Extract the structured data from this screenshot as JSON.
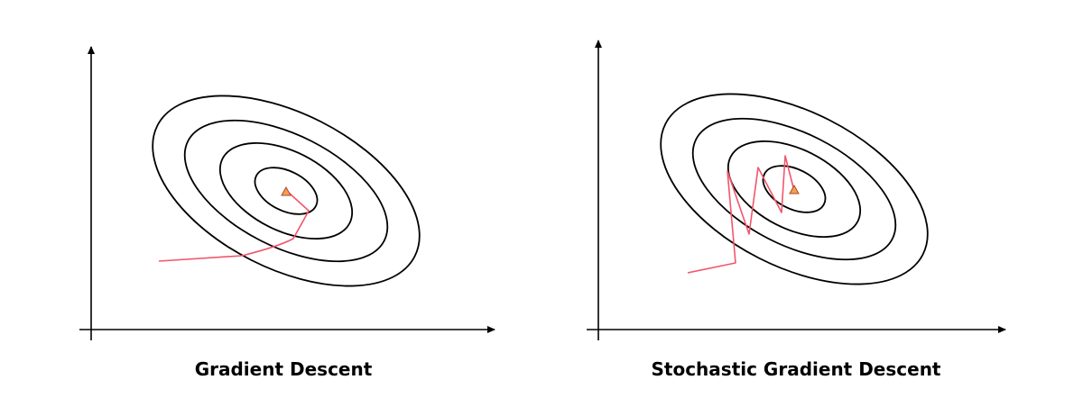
{
  "figure": {
    "colors": {
      "axis": "#000000",
      "contour": "#000000",
      "path": "#f2566b",
      "minimum_fill": "#f4a24a",
      "minimum_stroke": "#b2432f"
    },
    "panels": [
      {
        "id": "gd",
        "caption": "Gradient Descent",
        "path_style": "smooth-curve",
        "icon": "minimum-triangle-icon"
      },
      {
        "id": "sgd",
        "caption": "Stochastic Gradient Descent",
        "path_style": "zigzag",
        "icon": "minimum-triangle-icon"
      }
    ]
  }
}
